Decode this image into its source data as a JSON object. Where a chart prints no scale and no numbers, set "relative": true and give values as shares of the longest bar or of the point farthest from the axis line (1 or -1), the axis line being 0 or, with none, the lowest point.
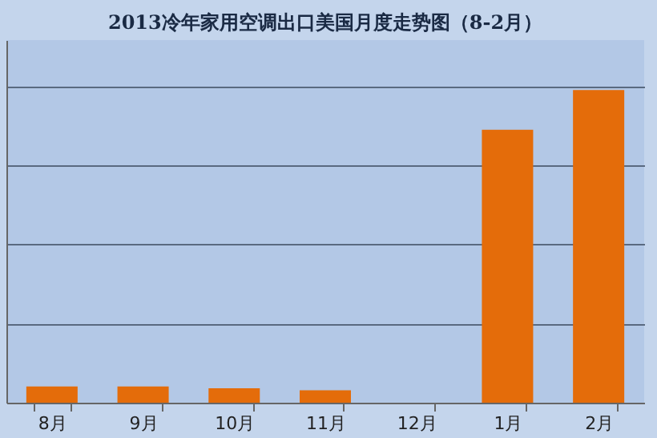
{
  "chart_data": {
    "type": "bar",
    "title": "2013冷年家用空调出口美国月度走势图（8-2月）",
    "categories": [
      "8月",
      "9月",
      "10月",
      "11月",
      "12月",
      "1月",
      "2月"
    ],
    "relative": true,
    "series": [
      {
        "color": "#e46c0a",
        "values": [
          0.052,
          0.052,
          0.046,
          0.04,
          null,
          0.873,
          1
        ]
      }
    ],
    "grid": "y",
    "legend": false
  }
}
